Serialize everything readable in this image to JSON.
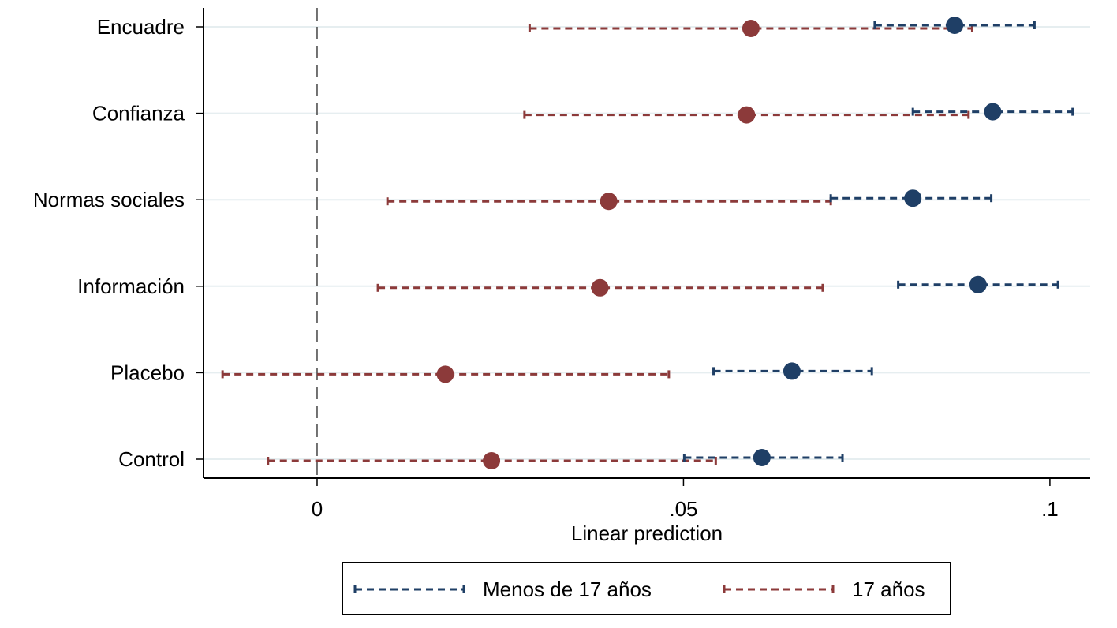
{
  "chart_data": {
    "type": "scatter",
    "title": "",
    "xlabel": "Linear prediction",
    "ylabel": "",
    "orientation": "horizontal-ci",
    "categories": [
      "Encuadre",
      "Confianza",
      "Normas sociales",
      "Información",
      "Placebo",
      "Control"
    ],
    "xlim": [
      -0.0155,
      0.1055
    ],
    "xticks": [
      0,
      0.05,
      0.1
    ],
    "xtick_labels": [
      "0",
      ".05",
      ".1"
    ],
    "reference_line_x": 0,
    "grid": true,
    "legend_position": "bottom",
    "series": [
      {
        "name": "Menos de 17 años",
        "color": "#1f3f66",
        "estimate": [
          0.087,
          0.0922,
          0.0813,
          0.0902,
          0.0648,
          0.0607
        ],
        "ci_low": [
          0.0761,
          0.0813,
          0.0701,
          0.0793,
          0.0541,
          0.0501
        ],
        "ci_high": [
          0.0979,
          0.1031,
          0.092,
          0.1011,
          0.0757,
          0.0717
        ]
      },
      {
        "name": "17 años",
        "color": "#8c3a3a",
        "estimate": [
          0.0592,
          0.0586,
          0.0398,
          0.0386,
          0.0175,
          0.0238
        ],
        "ci_low": [
          0.029,
          0.0283,
          0.0096,
          0.0083,
          -0.0129,
          -0.0067
        ],
        "ci_high": [
          0.0894,
          0.0889,
          0.0701,
          0.069,
          0.048,
          0.0544
        ]
      }
    ]
  }
}
